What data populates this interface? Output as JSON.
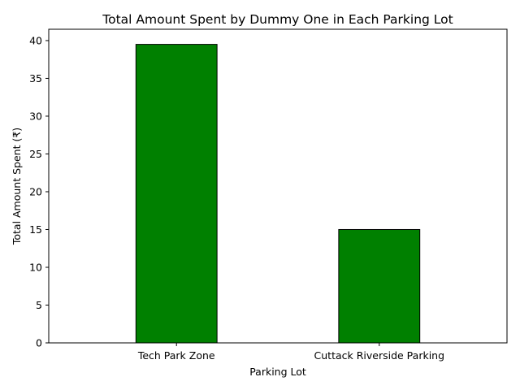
{
  "chart_data": {
    "type": "bar",
    "title": "Total Amount Spent by Dummy One in Each Parking Lot",
    "xlabel": "Parking Lot",
    "ylabel": "Total Amount Spent (₹)",
    "categories": [
      "Tech Park Zone",
      "Cuttack Riverside Parking"
    ],
    "values": [
      39.5,
      15.0
    ],
    "ylim": [
      0,
      41.5
    ],
    "yticks": [
      0,
      5,
      10,
      15,
      20,
      25,
      30,
      35,
      40
    ],
    "ytick_labels": [
      "0",
      "5",
      "10",
      "15",
      "20",
      "25",
      "30",
      "35",
      "40"
    ],
    "grid": false,
    "legend": "none",
    "colors": {
      "bar_fill": "#008000",
      "bar_edge": "#000000",
      "axis": "#000000",
      "text": "#000000"
    }
  }
}
